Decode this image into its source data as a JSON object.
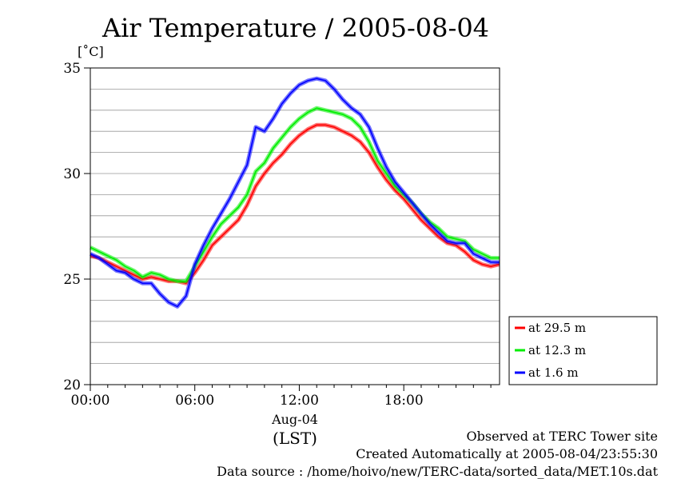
{
  "chart_data": {
    "type": "line",
    "title": "Air Temperature / 2005-08-04",
    "ylabel": "[˚C]",
    "xlabel": "(LST)",
    "date_label": "Aug-04",
    "ylim": [
      20,
      35
    ],
    "xlim": [
      0,
      23.5
    ],
    "y_ticks": [
      20,
      25,
      30,
      35
    ],
    "x_ticks": [
      {
        "value": 0,
        "label": "00:00"
      },
      {
        "value": 6,
        "label": "06:00"
      },
      {
        "value": 12,
        "label": "12:00"
      },
      {
        "value": 18,
        "label": "18:00"
      }
    ],
    "grid": true,
    "legend_position": "right, below plot",
    "x": [
      0,
      0.5,
      1,
      1.5,
      2,
      2.5,
      3,
      3.5,
      4,
      4.5,
      5,
      5.5,
      6,
      6.5,
      7,
      7.5,
      8,
      8.5,
      9,
      9.5,
      10,
      10.5,
      11,
      11.5,
      12,
      12.5,
      13,
      13.5,
      14,
      14.5,
      15,
      15.5,
      16,
      16.5,
      17,
      17.5,
      18,
      18.5,
      19,
      19.5,
      20,
      20.5,
      21,
      21.5,
      22,
      22.5,
      23,
      23.5
    ],
    "series": [
      {
        "name": "at 29.5 m",
        "color": "#ff0000",
        "values": [
          26.1,
          26.0,
          25.8,
          25.6,
          25.4,
          25.2,
          25.0,
          25.1,
          25.0,
          24.9,
          24.9,
          24.8,
          25.3,
          25.9,
          26.6,
          27.0,
          27.4,
          27.8,
          28.5,
          29.4,
          30.0,
          30.5,
          30.9,
          31.4,
          31.8,
          32.1,
          32.3,
          32.3,
          32.2,
          32.0,
          31.8,
          31.5,
          31.0,
          30.3,
          29.7,
          29.2,
          28.8,
          28.3,
          27.8,
          27.4,
          27.0,
          26.7,
          26.6,
          26.3,
          25.9,
          25.7,
          25.6,
          25.7
        ]
      },
      {
        "name": "at 12.3 m",
        "color": "#00ee00",
        "values": [
          26.5,
          26.3,
          26.1,
          25.9,
          25.6,
          25.4,
          25.1,
          25.3,
          25.2,
          25.0,
          24.9,
          24.9,
          25.6,
          26.3,
          27.0,
          27.6,
          28.0,
          28.4,
          29.0,
          30.1,
          30.5,
          31.2,
          31.7,
          32.2,
          32.6,
          32.9,
          33.1,
          33.0,
          32.9,
          32.8,
          32.6,
          32.2,
          31.5,
          30.6,
          30.0,
          29.4,
          29.0,
          28.6,
          28.1,
          27.7,
          27.4,
          27.0,
          26.9,
          26.8,
          26.4,
          26.2,
          26.0,
          26.0
        ]
      },
      {
        "name": "at 1.6 m",
        "color": "#0000ff",
        "values": [
          26.2,
          26.0,
          25.7,
          25.4,
          25.3,
          25.0,
          24.8,
          24.8,
          24.3,
          23.9,
          23.7,
          24.2,
          25.7,
          26.6,
          27.4,
          28.1,
          28.8,
          29.6,
          30.4,
          32.2,
          32.0,
          32.6,
          33.3,
          33.8,
          34.2,
          34.4,
          34.5,
          34.4,
          34.0,
          33.5,
          33.1,
          32.8,
          32.2,
          31.2,
          30.3,
          29.6,
          29.1,
          28.6,
          28.1,
          27.6,
          27.2,
          26.8,
          26.7,
          26.7,
          26.2,
          26.0,
          25.8,
          25.8
        ]
      }
    ]
  },
  "footer": {
    "line1": "Observed at TERC Tower site",
    "line2": "Created Automatically at 2005-08-04/23:55:30",
    "line3": "Data source : /home/hoivo/new/TERC-data/sorted_data/MET.10s.dat"
  }
}
